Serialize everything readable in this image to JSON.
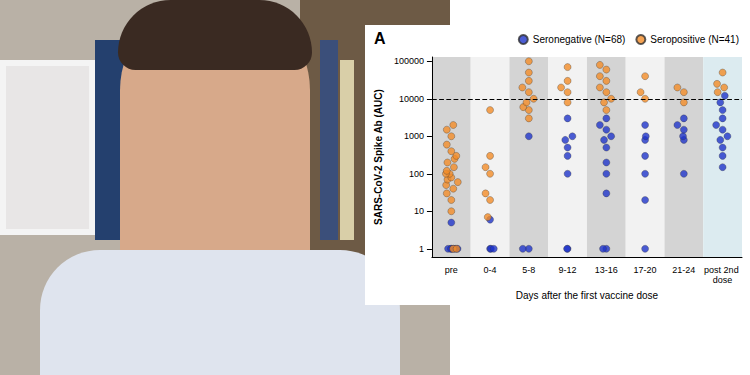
{
  "chart_data": {
    "type": "scatter",
    "title": "A",
    "x_label": "Days after the first vaccine dose",
    "y_label": "SARS-CoV-2 Spike Ab (AUC)",
    "categories": [
      "pre",
      "0-4",
      "5-8",
      "9-12",
      "13-16",
      "17-20",
      "21-24",
      "post 2nd dose"
    ],
    "log": "y",
    "ylim": [
      0.6,
      130000
    ],
    "yticks": [
      1,
      10,
      100,
      1000,
      10000,
      100000
    ],
    "reference_line": 10000,
    "grid": false,
    "legend": "top",
    "marker": "circle",
    "series": [
      {
        "name": "Seronegative (N=68)",
        "color": "#1f35c9",
        "x": [
          "pre",
          "pre",
          "pre",
          "pre",
          "pre",
          "pre",
          "pre",
          "0-4",
          "0-4",
          "0-4",
          "0-4",
          "5-8",
          "5-8",
          "5-8",
          "9-12",
          "9-12",
          "9-12",
          "9-12",
          "9-12",
          "9-12",
          "9-12",
          "9-12",
          "13-16",
          "13-16",
          "13-16",
          "13-16",
          "13-16",
          "13-16",
          "13-16",
          "13-16",
          "13-16",
          "13-16",
          "13-16",
          "17-20",
          "17-20",
          "17-20",
          "17-20",
          "17-20",
          "17-20",
          "17-20",
          "21-24",
          "21-24",
          "21-24",
          "21-24",
          "21-24",
          "21-24",
          "post 2nd dose",
          "post 2nd dose",
          "post 2nd dose",
          "post 2nd dose",
          "post 2nd dose",
          "post 2nd dose",
          "post 2nd dose",
          "post 2nd dose",
          "post 2nd dose",
          "post 2nd dose",
          "post 2nd dose"
        ],
        "values": [
          1,
          1,
          1,
          1,
          1,
          1,
          5,
          1,
          1,
          1,
          6,
          1,
          1,
          1000,
          1,
          1,
          100,
          300,
          500,
          800,
          1000,
          3000,
          1,
          1,
          30,
          100,
          200,
          500,
          800,
          1000,
          1500,
          2000,
          3000,
          1,
          20,
          100,
          300,
          800,
          1000,
          2000,
          100,
          800,
          1000,
          1500,
          2000,
          3000,
          150,
          300,
          500,
          800,
          1000,
          1500,
          2000,
          3000,
          5000,
          8000,
          12000
        ]
      },
      {
        "name": "Seropositive (N=41)",
        "color": "#f28c28",
        "x": [
          "pre",
          "pre",
          "pre",
          "pre",
          "pre",
          "pre",
          "pre",
          "pre",
          "pre",
          "pre",
          "pre",
          "pre",
          "pre",
          "pre",
          "pre",
          "pre",
          "pre",
          "pre",
          "pre",
          "pre",
          "pre",
          "pre",
          "0-4",
          "0-4",
          "0-4",
          "0-4",
          "0-4",
          "0-4",
          "0-4",
          "5-8",
          "5-8",
          "5-8",
          "5-8",
          "5-8",
          "5-8",
          "5-8",
          "5-8",
          "5-8",
          "5-8",
          "9-12",
          "9-12",
          "9-12",
          "9-12",
          "9-12",
          "13-16",
          "13-16",
          "13-16",
          "13-16",
          "13-16",
          "13-16",
          "13-16",
          "13-16",
          "13-16",
          "17-20",
          "17-20",
          "17-20",
          "21-24",
          "21-24",
          "21-24",
          "post 2nd dose",
          "post 2nd dose",
          "post 2nd dose",
          "post 2nd dose"
        ],
        "values": [
          1,
          1,
          10,
          20,
          30,
          40,
          50,
          60,
          70,
          80,
          100,
          100,
          120,
          150,
          200,
          250,
          300,
          400,
          600,
          1000,
          1500,
          2000,
          7,
          20,
          30,
          100,
          150,
          300,
          5000,
          3000,
          5000,
          6000,
          8000,
          10000,
          15000,
          20000,
          30000,
          50000,
          100000,
          8000,
          15000,
          20000,
          30000,
          70000,
          5000,
          8000,
          10000,
          15000,
          20000,
          30000,
          40000,
          60000,
          80000,
          10000,
          15000,
          40000,
          8000,
          15000,
          20000,
          15000,
          20000,
          25000,
          50000
        ]
      }
    ]
  }
}
